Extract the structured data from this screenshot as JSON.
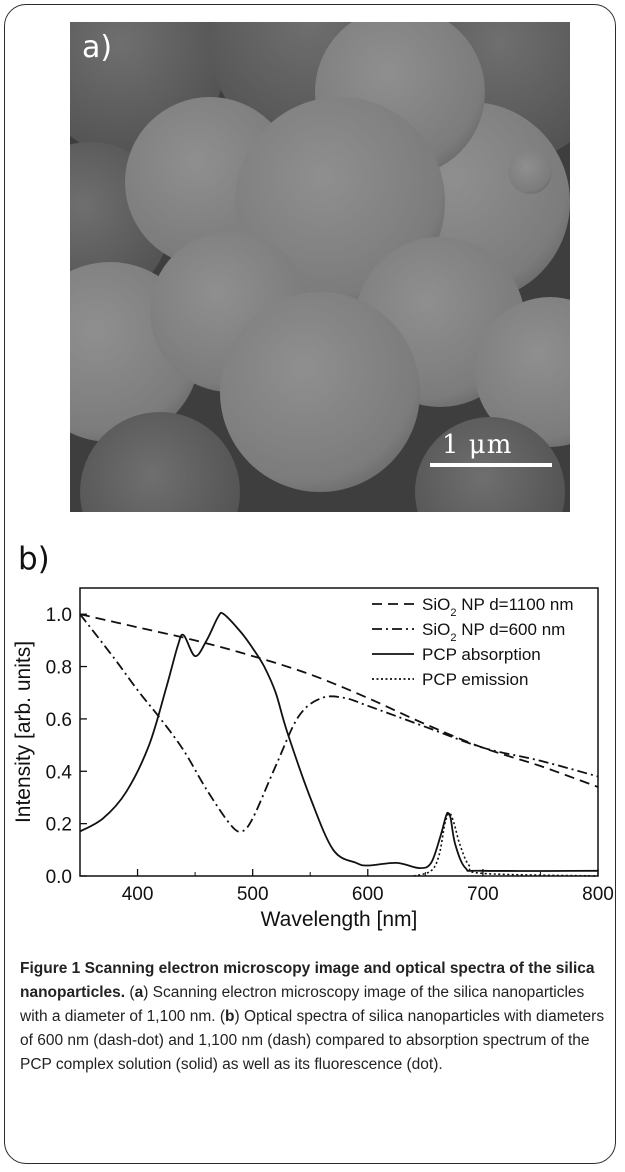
{
  "panel_a": {
    "label": "a)",
    "scale_label": "1 μm"
  },
  "panel_b": {
    "label": "b)"
  },
  "chart_data": {
    "type": "line",
    "xlabel": "Wavelength [nm]",
    "ylabel": "Intensity [arb. units]",
    "xlim": [
      350,
      800
    ],
    "ylim": [
      0,
      1.1
    ],
    "xticks": [
      400,
      500,
      600,
      700,
      800
    ],
    "yticks": [
      0.0,
      0.2,
      0.4,
      0.6,
      0.8,
      1.0
    ],
    "grid": false,
    "legend_position": "top-right",
    "series": [
      {
        "name": "SiO2 NP d=1100 nm",
        "style": "dash",
        "x": [
          350,
          400,
          450,
          500,
          550,
          600,
          650,
          700,
          750,
          800
        ],
        "y": [
          1.0,
          0.95,
          0.9,
          0.84,
          0.77,
          0.68,
          0.58,
          0.49,
          0.42,
          0.34
        ]
      },
      {
        "name": "SiO2 NP d=600 nm",
        "style": "dash-dot",
        "x": [
          350,
          380,
          400,
          420,
          440,
          460,
          480,
          490,
          500,
          520,
          540,
          560,
          580,
          600,
          650,
          700,
          750,
          800
        ],
        "y": [
          1.0,
          0.83,
          0.71,
          0.6,
          0.48,
          0.33,
          0.2,
          0.17,
          0.22,
          0.42,
          0.61,
          0.68,
          0.68,
          0.65,
          0.57,
          0.49,
          0.44,
          0.38
        ]
      },
      {
        "name": "PCP absorption",
        "style": "solid",
        "x": [
          350,
          370,
          390,
          410,
          425,
          435,
          440,
          450,
          460,
          470,
          475,
          490,
          500,
          510,
          520,
          530,
          550,
          570,
          590,
          600,
          625,
          645,
          655,
          663,
          668,
          670,
          672,
          676,
          685,
          700,
          800
        ],
        "y": [
          0.17,
          0.22,
          0.32,
          0.5,
          0.72,
          0.88,
          0.92,
          0.84,
          0.9,
          0.99,
          1.0,
          0.93,
          0.87,
          0.8,
          0.7,
          0.55,
          0.3,
          0.1,
          0.05,
          0.04,
          0.05,
          0.03,
          0.05,
          0.15,
          0.23,
          0.24,
          0.22,
          0.12,
          0.03,
          0.02,
          0.02
        ]
      },
      {
        "name": "PCP emission",
        "style": "dot",
        "x": [
          640,
          655,
          662,
          667,
          671,
          675,
          680,
          688,
          700,
          800
        ],
        "y": [
          0.0,
          0.02,
          0.08,
          0.2,
          0.24,
          0.2,
          0.12,
          0.04,
          0.01,
          0.0
        ]
      }
    ]
  },
  "caption": {
    "figure_label": "Figure 1",
    "title": "Scanning electron microscopy image and optical spectra of the silica nanoparticles.",
    "part_a_open": " (",
    "part_a_letter": "a",
    "part_a_text": ") Scanning electron microscopy image of the silica nanoparticles with a diameter of 1,100 nm. (",
    "part_b_letter": "b",
    "part_b_text": ") Optical spectra of silica nanoparticles with diameters of 600 nm (dash-dot) and 1,100 nm (dash) compared to absorption spectrum of the PCP complex solution (solid) as well as its fluorescence (dot)."
  },
  "colors": {
    "frame": "#2b2b2b",
    "sem_background": "#3a3a3a",
    "particle": "#7d7d7d",
    "line": "#111111"
  }
}
